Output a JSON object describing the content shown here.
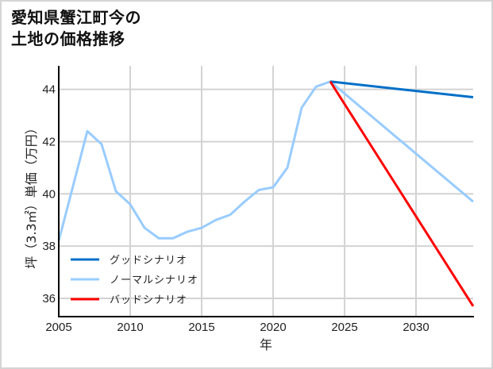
{
  "title": {
    "line1": "愛知県蟹江町今の",
    "line2": "土地の価格推移"
  },
  "colors": {
    "good": "#0070c8",
    "normal": "#99ccff",
    "bad": "#ff0000",
    "grid": "#d3d3d3",
    "axis": "#000000",
    "frame": "#d4d4d4"
  },
  "chart_data": {
    "type": "line",
    "title": "愛知県蟹江町今の土地の価格推移",
    "xlabel": "年",
    "ylabel": "坪（3.3㎡）単価（万円）",
    "xlim": [
      2005,
      2034
    ],
    "ylim": [
      35.3,
      44.9
    ],
    "x_ticks": [
      2005,
      2010,
      2015,
      2020,
      2025,
      2030
    ],
    "y_ticks": [
      36,
      38,
      40,
      42,
      44
    ],
    "grid": true,
    "legend_position": "lower left",
    "series": [
      {
        "name": "ノーマルシナリオ",
        "color": "#99ccff",
        "x": [
          2005,
          2006,
          2007,
          2008,
          2009,
          2010,
          2011,
          2012,
          2013,
          2014,
          2015,
          2016,
          2017,
          2018,
          2019,
          2020,
          2021,
          2022,
          2023,
          2024,
          2034
        ],
        "values": [
          38.2,
          40.3,
          42.4,
          41.9,
          40.1,
          39.6,
          38.7,
          38.3,
          38.3,
          38.55,
          38.7,
          39.0,
          39.2,
          39.7,
          40.15,
          40.25,
          41.0,
          43.3,
          44.1,
          44.3,
          39.7
        ]
      },
      {
        "name": "グッドシナリオ",
        "color": "#0070c8",
        "x": [
          2024,
          2034
        ],
        "values": [
          44.3,
          43.7
        ]
      },
      {
        "name": "バッドシナリオ",
        "color": "#ff0000",
        "x": [
          2024,
          2034
        ],
        "values": [
          44.3,
          35.7
        ]
      }
    ],
    "legend": [
      "グッドシナリオ",
      "ノーマルシナリオ",
      "バッドシナリオ"
    ]
  }
}
